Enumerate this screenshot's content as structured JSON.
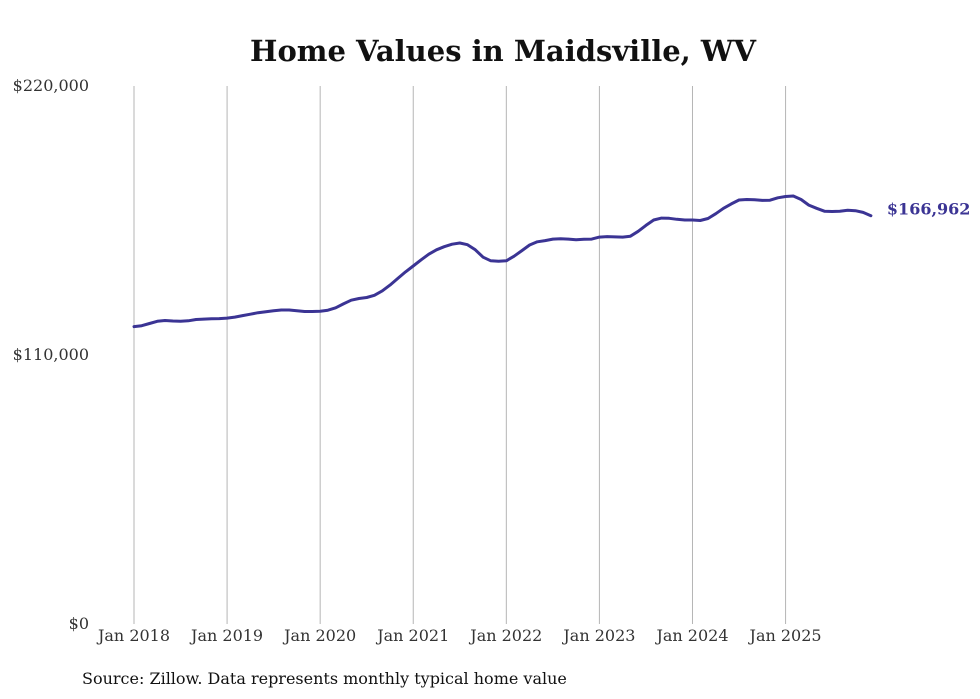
{
  "chart_data": {
    "type": "line",
    "title": "Home Values in Maidsville, WV",
    "xlabel": "",
    "ylabel": "",
    "ylim": [
      0,
      220000
    ],
    "xlim": [
      2018.0,
      2025.95
    ],
    "y_ticks": [
      {
        "value": 0,
        "label": "$0"
      },
      {
        "value": 110000,
        "label": "$110,000"
      },
      {
        "value": 220000,
        "label": "$220,000"
      }
    ],
    "x_ticks": [
      {
        "value": 2018,
        "label": "Jan 2018"
      },
      {
        "value": 2019,
        "label": "Jan 2019"
      },
      {
        "value": 2020,
        "label": "Jan 2020"
      },
      {
        "value": 2021,
        "label": "Jan 2021"
      },
      {
        "value": 2022,
        "label": "Jan 2022"
      },
      {
        "value": 2023,
        "label": "Jan 2023"
      },
      {
        "value": 2024,
        "label": "Jan 2024"
      },
      {
        "value": 2025,
        "label": "Jan 2025"
      }
    ],
    "grid": "vertical",
    "series": [
      {
        "name": "Typical home value",
        "color": "#3b3494",
        "end_label": "$166,962",
        "x": [
          2018.0,
          2018.083,
          2018.167,
          2018.25,
          2018.333,
          2018.417,
          2018.5,
          2018.583,
          2018.667,
          2018.75,
          2018.833,
          2018.917,
          2019.0,
          2019.083,
          2019.167,
          2019.25,
          2019.333,
          2019.417,
          2019.5,
          2019.583,
          2019.667,
          2019.75,
          2019.833,
          2019.917,
          2020.0,
          2020.083,
          2020.167,
          2020.25,
          2020.333,
          2020.417,
          2020.5,
          2020.583,
          2020.667,
          2020.75,
          2020.833,
          2020.917,
          2021.0,
          2021.083,
          2021.167,
          2021.25,
          2021.333,
          2021.417,
          2021.5,
          2021.583,
          2021.667,
          2021.75,
          2021.833,
          2021.917,
          2022.0,
          2022.083,
          2022.167,
          2022.25,
          2022.333,
          2022.417,
          2022.5,
          2022.583,
          2022.667,
          2022.75,
          2022.833,
          2022.917,
          2023.0,
          2023.083,
          2023.167,
          2023.25,
          2023.333,
          2023.417,
          2023.5,
          2023.583,
          2023.667,
          2023.75,
          2023.833,
          2023.917,
          2024.0,
          2024.083,
          2024.167,
          2024.25,
          2024.333,
          2024.417,
          2024.5,
          2024.583,
          2024.667,
          2024.75,
          2024.833,
          2024.917,
          2025.0,
          2025.083,
          2025.167,
          2025.25,
          2025.333,
          2025.417,
          2025.5,
          2025.583,
          2025.667,
          2025.75,
          2025.833,
          2025.917
        ],
        "values": [
          121600,
          122000,
          122900,
          123800,
          124100,
          123900,
          123800,
          124000,
          124500,
          124700,
          124800,
          124900,
          125100,
          125500,
          126100,
          126700,
          127300,
          127700,
          128100,
          128400,
          128400,
          128100,
          127800,
          127800,
          127900,
          128300,
          129300,
          130900,
          132400,
          133100,
          133500,
          134400,
          136200,
          138600,
          141300,
          144000,
          146400,
          148900,
          151200,
          153000,
          154300,
          155300,
          155800,
          155100,
          153000,
          150000,
          148500,
          148300,
          148500,
          150400,
          152700,
          155000,
          156300,
          156800,
          157400,
          157500,
          157400,
          157100,
          157300,
          157400,
          158200,
          158400,
          158300,
          158200,
          158600,
          160600,
          163000,
          165200,
          166000,
          165900,
          165500,
          165200,
          165200,
          165000,
          165800,
          167800,
          170000,
          171800,
          173400,
          173600,
          173500,
          173200,
          173300,
          174300,
          174800,
          175000,
          173600,
          171300,
          170000,
          168800,
          168700,
          168800,
          169200,
          169000,
          168300,
          166962
        ]
      }
    ],
    "source_note": "Source: Zillow. Data represents monthly typical home value"
  }
}
